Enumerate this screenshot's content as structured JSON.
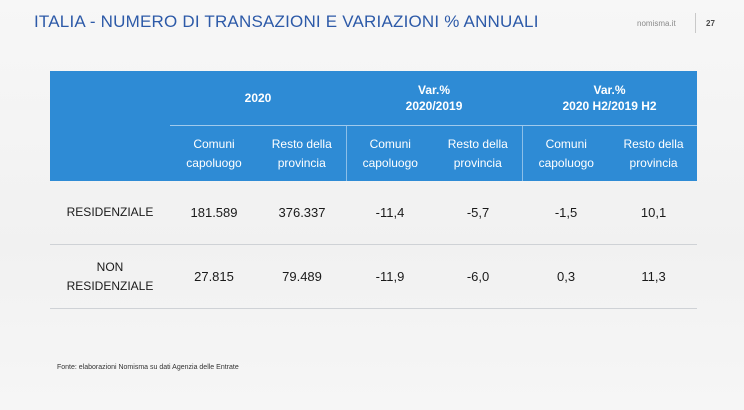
{
  "header": {
    "title": "ITALIA - NUMERO DI TRANSAZIONI E VARIAZIONI % ANNUALI",
    "brand": "nomisma.it",
    "page_number": "27"
  },
  "table": {
    "group_headers": [
      "2020",
      "Var.% 2020/2019",
      "Var.% 2020 H2/2019 H2"
    ],
    "group_headers_lines": [
      [
        "2020"
      ],
      [
        "Var.%",
        "2020/2019"
      ],
      [
        "Var.%",
        "2020 H2/2019 H2"
      ]
    ],
    "sub_headers": [
      [
        "Comuni",
        "capoluogo"
      ],
      [
        "Resto della",
        "provincia"
      ],
      [
        "Comuni",
        "capoluogo"
      ],
      [
        "Resto della",
        "provincia"
      ],
      [
        "Comuni",
        "capoluogo"
      ],
      [
        "Resto della",
        "provincia"
      ]
    ],
    "rows": [
      {
        "label": [
          "RESIDENZIALE"
        ],
        "values": [
          "181.589",
          "376.337",
          "-11,4",
          "-5,7",
          "-1,5",
          "10,1"
        ]
      },
      {
        "label": [
          "NON",
          "RESIDENZIALE"
        ],
        "values": [
          "27.815",
          "79.489",
          "-11,9",
          "-6,0",
          "0,3",
          "11,3"
        ]
      }
    ]
  },
  "footnote": "Fonte: elaborazioni Nomisma su dati Agenzia delle Entrate",
  "colors": {
    "header_blue": "#2e8bd5",
    "title_blue": "#2d5aa8"
  }
}
